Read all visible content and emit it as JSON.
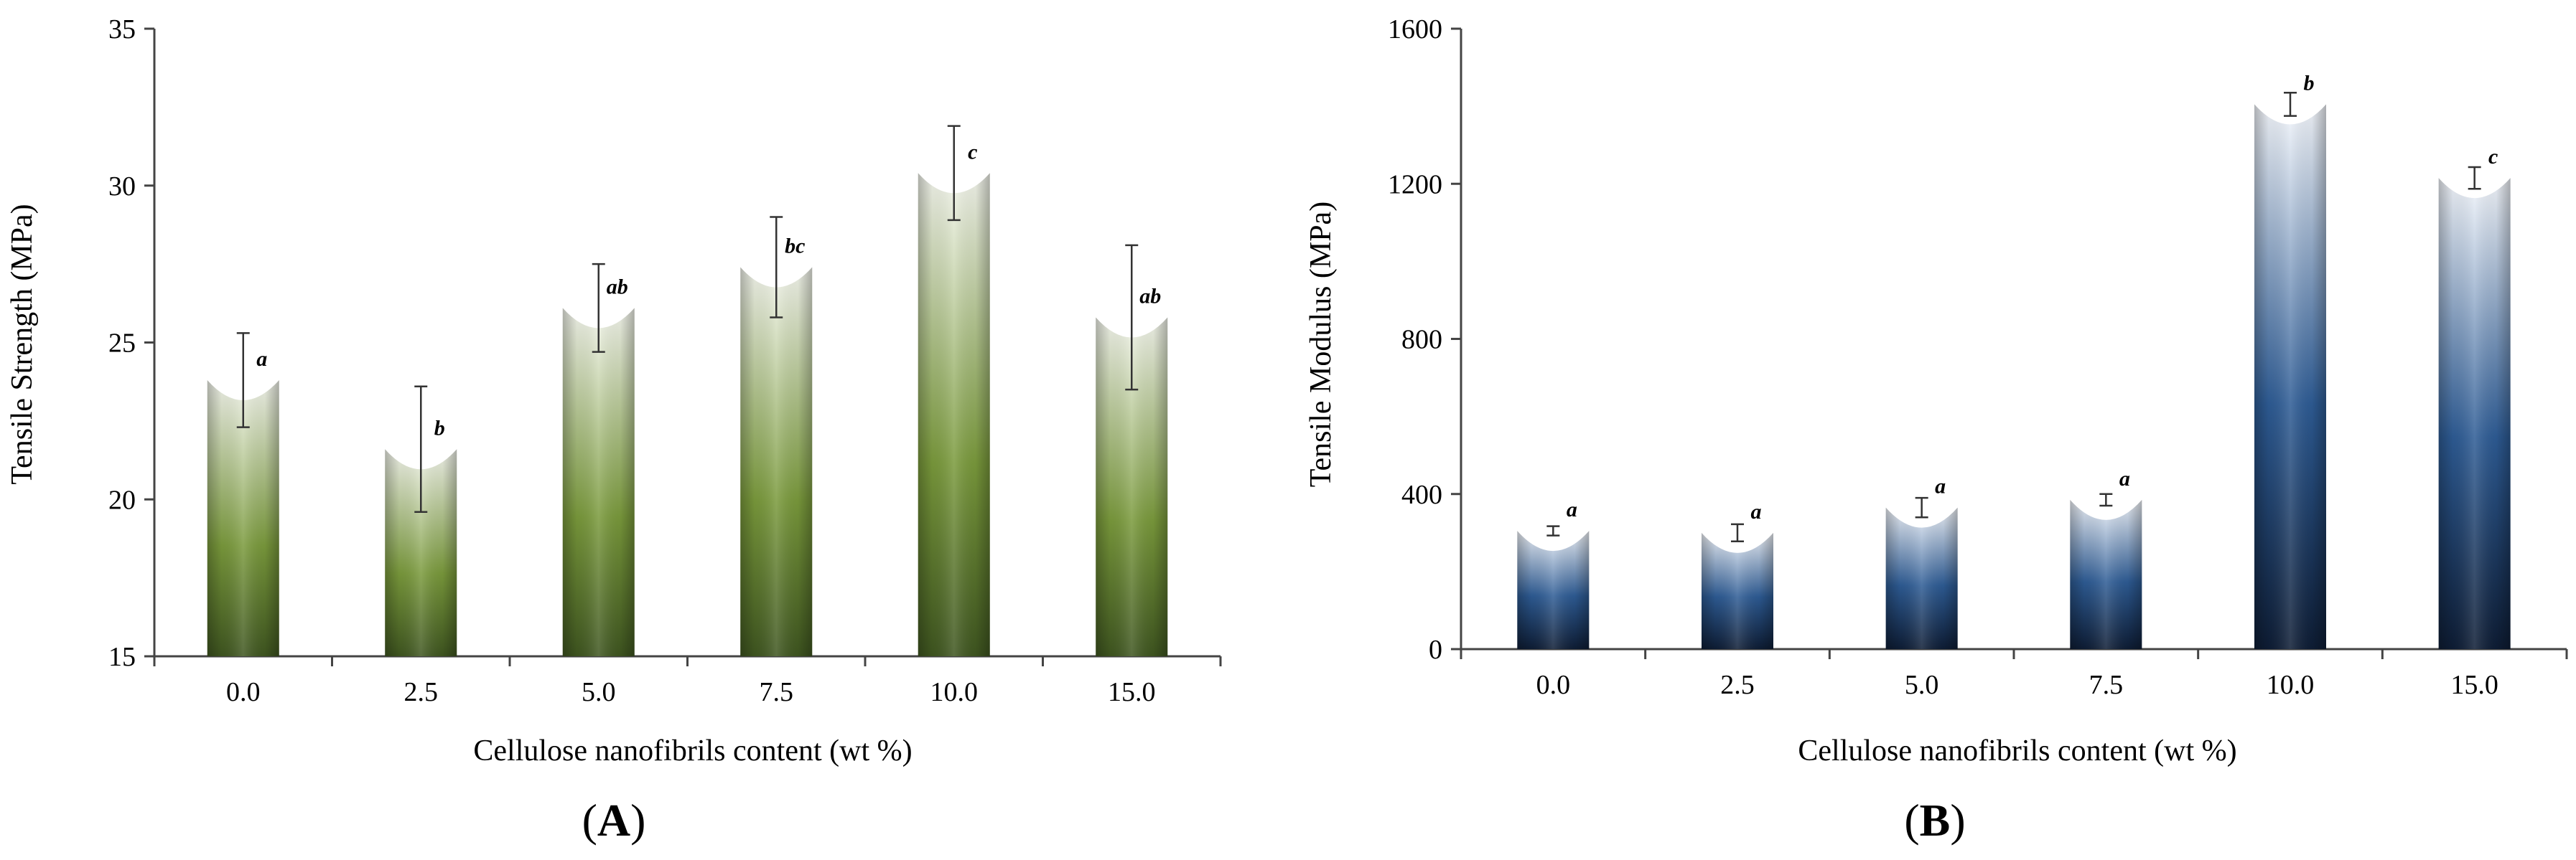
{
  "chart_data": [
    {
      "type": "bar",
      "panel": "A",
      "panel_label": {
        "open": "(",
        "letter": "A",
        "close": ")"
      },
      "xlabel": "Cellulose nanofibrils content (wt %)",
      "ylabel": "Tensile Strength (MPa)",
      "categories": [
        "0.0",
        "2.5",
        "5.0",
        "7.5",
        "10.0",
        "15.0"
      ],
      "values": [
        23.8,
        21.6,
        26.1,
        27.4,
        30.4,
        25.8
      ],
      "error": [
        1.5,
        2.0,
        1.4,
        1.6,
        1.5,
        2.3
      ],
      "significance": [
        "a",
        "b",
        "ab",
        "bc",
        "c",
        "ab"
      ],
      "ylim": [
        15,
        35
      ],
      "yticks": [
        "15",
        "20",
        "25",
        "30",
        "35"
      ],
      "colors": {
        "dark": "#3f5620",
        "mid": "#7a9a3c",
        "light": "#f4f6ee"
      }
    },
    {
      "type": "bar",
      "panel": "B",
      "panel_label": {
        "open": "(",
        "letter": "B",
        "close": ")"
      },
      "xlabel": "Cellulose nanofibrils content (wt %)",
      "ylabel": "Tensile Modulus (MPa)",
      "categories": [
        "0.0",
        "2.5",
        "5.0",
        "7.5",
        "10.0",
        "15.0"
      ],
      "values": [
        305,
        300,
        365,
        385,
        1405,
        1215
      ],
      "error": [
        12,
        22,
        25,
        15,
        30,
        28
      ],
      "significance": [
        "a",
        "a",
        "a",
        "a",
        "b",
        "c"
      ],
      "ylim": [
        0,
        1600
      ],
      "yticks": [
        "0",
        "400",
        "800",
        "1200",
        "1600"
      ],
      "colors": {
        "dark": "#0e1d35",
        "mid": "#2e5c95",
        "light": "#f4f7fc"
      }
    }
  ]
}
